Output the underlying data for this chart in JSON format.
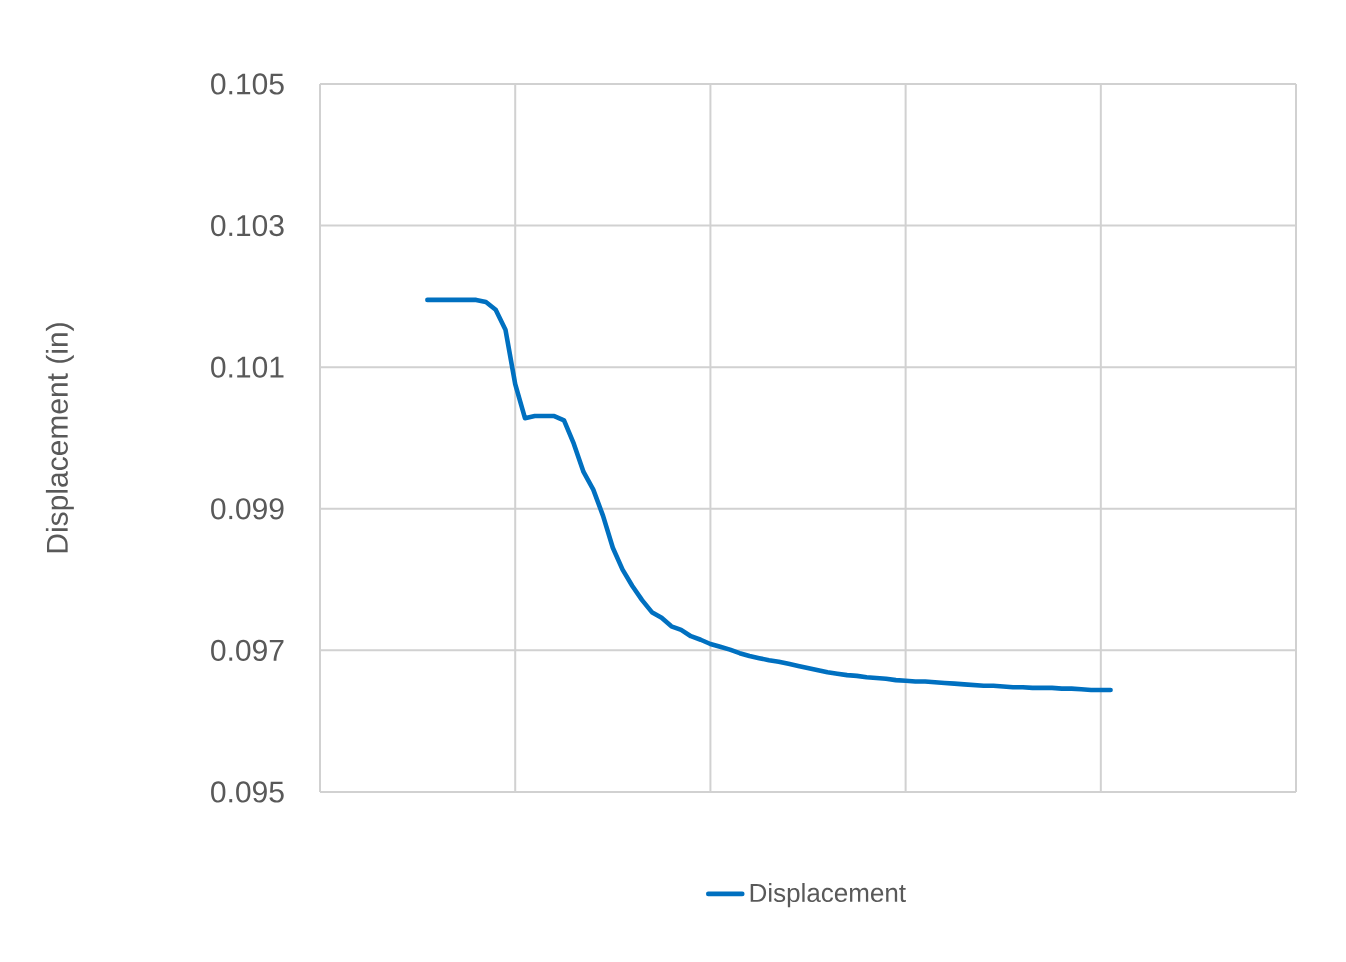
{
  "chart_data": {
    "type": "line",
    "ylabel": "Displacement (in)",
    "categories": [
      null,
      null,
      null,
      null,
      null,
      null,
      null,
      null,
      null,
      null,
      null,
      null,
      null,
      null,
      null,
      null,
      null,
      null,
      null,
      null,
      null,
      null,
      null,
      null,
      null,
      null,
      null,
      null,
      null,
      null,
      null,
      null,
      null,
      null,
      null,
      null,
      null,
      null,
      null,
      null,
      null,
      null,
      null,
      null,
      null,
      null,
      null,
      null,
      null,
      null,
      null,
      null,
      null,
      null,
      null,
      null,
      null,
      null,
      null,
      null,
      null,
      null,
      null,
      null,
      null,
      null,
      null,
      null,
      null,
      null,
      null,
      null,
      null,
      null,
      null,
      null,
      null,
      null,
      null,
      null,
      null,
      null,
      null,
      null,
      null,
      null,
      null,
      null,
      null,
      null,
      null,
      null,
      null,
      null,
      null,
      null,
      null,
      null,
      null,
      null,
      null
    ],
    "series": [
      {
        "name": "Displacement",
        "color": "#0070c0",
        "values": [
          null,
          null,
          null,
          null,
          null,
          null,
          null,
          null,
          null,
          null,
          null,
          0.10195,
          0.10195,
          0.10195,
          0.10195,
          0.10195,
          0.10195,
          0.10192,
          0.10181,
          0.10153,
          0.10076,
          0.10028,
          0.10031,
          0.10031,
          0.10031,
          0.10025,
          0.09992,
          0.09952,
          0.09927,
          0.0989,
          0.09845,
          0.09814,
          0.09791,
          0.09771,
          0.09754,
          0.09746,
          0.09734,
          0.09729,
          0.0972,
          0.09715,
          0.09709,
          0.09705,
          0.09701,
          0.09696,
          0.09692,
          0.09689,
          0.09686,
          0.09684,
          0.09681,
          0.09678,
          0.09675,
          0.09672,
          0.09669,
          0.09667,
          0.09665,
          0.09664,
          0.09662,
          0.09661,
          0.0966,
          0.09658,
          0.09657,
          0.09656,
          0.09656,
          0.09655,
          0.09654,
          0.09653,
          0.09652,
          0.09651,
          0.0965,
          0.0965,
          0.09649,
          0.09648,
          0.09648,
          0.09647,
          0.09647,
          0.09647,
          0.09646,
          0.09646,
          0.09645,
          0.09644,
          0.09644,
          0.09644,
          null,
          null,
          null,
          null,
          null,
          null,
          null,
          null,
          null,
          null,
          null,
          null,
          null,
          null,
          null,
          null,
          null,
          null,
          null
        ]
      }
    ],
    "ylim": [
      0.095,
      0.105
    ],
    "yticks": [
      0.095,
      0.097,
      0.099,
      0.101,
      0.103,
      0.105
    ],
    "grid": true,
    "legend": "bottom",
    "tick_labels": "y",
    "line_style": "solid"
  }
}
